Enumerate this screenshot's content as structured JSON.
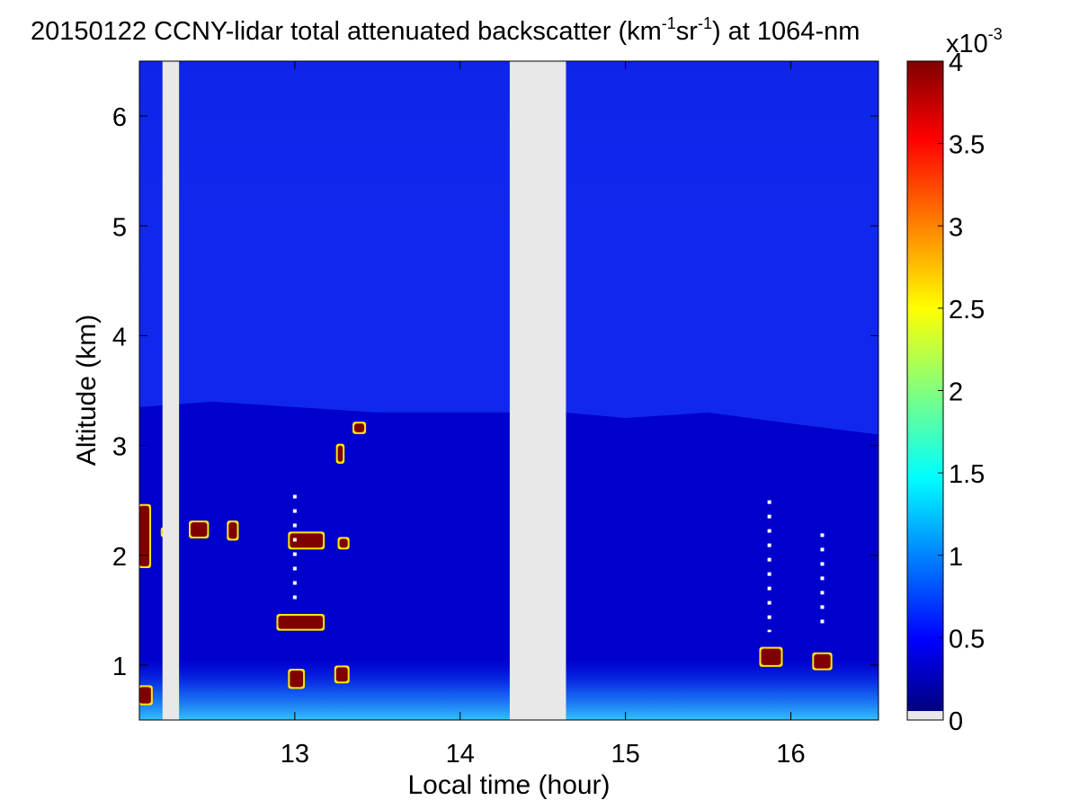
{
  "chart_data": {
    "type": "heatmap",
    "title": {
      "prefix": "20150122 CCNY-lidar total attenuated backscatter (km",
      "sup1": "-1",
      "mid": "sr",
      "sup2": "-1",
      "suffix": ") at 1064-nm"
    },
    "xlabel": "Local time (hour)",
    "ylabel": "Altitude (km)",
    "xlim": [
      12.06,
      16.53
    ],
    "ylim": [
      0.5,
      6.5
    ],
    "xticks": [
      13,
      14,
      15,
      16
    ],
    "yticks": [
      1,
      2,
      3,
      4,
      5,
      6
    ],
    "colorbar": {
      "range": [
        0,
        4
      ],
      "ticks": [
        "0",
        "0.5",
        "1",
        "1.5",
        "2",
        "2.5",
        "3",
        "3.5",
        "4"
      ],
      "exponent_base": "x10",
      "exponent_power": "-3",
      "colormap": "jet",
      "missing_color": "#e8e8e8"
    },
    "background_level": 0.3,
    "upper_level": 0.05,
    "missing_data_gaps": [
      [
        12.2,
        12.3
      ],
      [
        14.3,
        14.64
      ]
    ],
    "boundary_layer_top_km": [
      {
        "x": 12.06,
        "y": 3.35
      },
      {
        "x": 12.5,
        "y": 3.4
      },
      {
        "x": 13.0,
        "y": 3.35
      },
      {
        "x": 13.5,
        "y": 3.3
      },
      {
        "x": 14.3,
        "y": 3.3
      },
      {
        "x": 14.64,
        "y": 3.3
      },
      {
        "x": 15.0,
        "y": 3.25
      },
      {
        "x": 15.5,
        "y": 3.3
      },
      {
        "x": 16.0,
        "y": 3.2
      },
      {
        "x": 16.53,
        "y": 3.1
      }
    ],
    "cloud_features": [
      {
        "name": "cloud",
        "x": [
          12.06,
          12.12
        ],
        "y": [
          1.9,
          2.45
        ],
        "value": 4
      },
      {
        "name": "cloud",
        "x": [
          12.06,
          12.13
        ],
        "y": [
          0.65,
          0.8
        ],
        "value": 4
      },
      {
        "name": "cloud",
        "x": [
          12.37,
          12.47
        ],
        "y": [
          2.17,
          2.3
        ],
        "value": 4
      },
      {
        "name": "cloud",
        "x": [
          12.2,
          12.27
        ],
        "y": [
          2.18,
          2.24
        ],
        "value": 4
      },
      {
        "name": "cloud",
        "x": [
          12.6,
          12.65
        ],
        "y": [
          2.15,
          2.3
        ],
        "value": 4
      },
      {
        "name": "cloud",
        "x": [
          12.97,
          13.17
        ],
        "y": [
          2.07,
          2.2
        ],
        "value": 4
      },
      {
        "name": "cloud",
        "x": [
          12.9,
          13.17
        ],
        "y": [
          1.33,
          1.45
        ],
        "value": 4
      },
      {
        "name": "cloud",
        "x": [
          13.27,
          13.32
        ],
        "y": [
          2.07,
          2.15
        ],
        "value": 4
      },
      {
        "name": "cloud",
        "x": [
          13.36,
          13.42
        ],
        "y": [
          3.12,
          3.2
        ],
        "value": 4
      },
      {
        "name": "cloud",
        "x": [
          13.26,
          13.29
        ],
        "y": [
          2.85,
          3.0
        ],
        "value": 4
      },
      {
        "name": "cloud",
        "x": [
          12.97,
          13.05
        ],
        "y": [
          0.8,
          0.95
        ],
        "value": 4
      },
      {
        "name": "cloud",
        "x": [
          13.25,
          13.32
        ],
        "y": [
          0.85,
          0.98
        ],
        "value": 4
      },
      {
        "name": "cloud",
        "x": [
          15.82,
          15.94
        ],
        "y": [
          1.0,
          1.15
        ],
        "value": 4
      },
      {
        "name": "cloud",
        "x": [
          16.14,
          16.24
        ],
        "y": [
          0.97,
          1.1
        ],
        "value": 4
      }
    ],
    "attenuated_missing_streaks": [
      {
        "x": 13.0,
        "y_from": 1.6,
        "y_to": 2.55
      },
      {
        "x": 15.87,
        "y_from": 1.3,
        "y_to": 2.5
      },
      {
        "x": 16.19,
        "y_from": 1.3,
        "y_to": 2.2
      }
    ]
  }
}
